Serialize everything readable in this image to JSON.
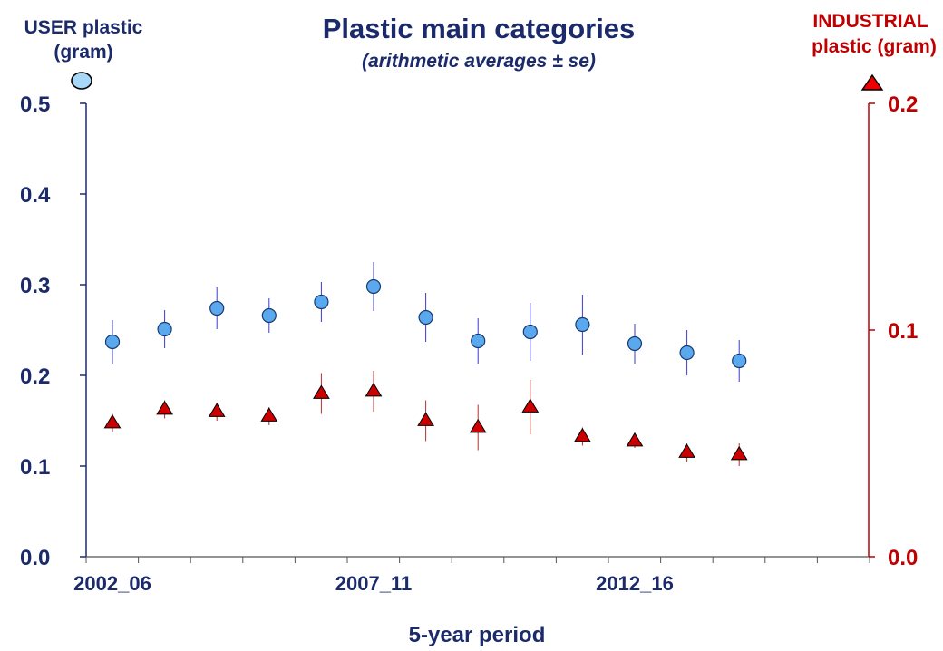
{
  "chart_data": {
    "type": "scatter",
    "title": "Plastic main categories",
    "subtitle": "(arithmetic averages ± se)",
    "xlabel": "5-year period",
    "y_left_label": [
      "USER plastic",
      "(gram)"
    ],
    "y_right_label": [
      "INDUSTRIAL",
      "plastic (gram)"
    ],
    "x_tick_labels": [
      "2002_06",
      "2007_11",
      "2012_16"
    ],
    "x_tick_positions": [
      1,
      6,
      11
    ],
    "x_range": [
      1,
      16
    ],
    "y_left": {
      "ticks": [
        "0.0",
        "0.1",
        "0.2",
        "0.3",
        "0.4",
        "0.5"
      ],
      "ylim": [
        0,
        0.5
      ]
    },
    "y_right": {
      "ticks": [
        "0.0",
        "0.1",
        "0.2"
      ],
      "ylim": [
        0,
        0.2
      ]
    },
    "grid": false,
    "series": [
      {
        "name": "USER plastic",
        "axis": "left",
        "marker": "circle",
        "color": "#5aa9ef",
        "error_color": "#3a3ad0",
        "x": [
          1,
          2,
          3,
          4,
          5,
          6,
          7,
          8,
          9,
          10,
          11,
          12,
          13
        ],
        "y": [
          0.237,
          0.251,
          0.274,
          0.266,
          0.281,
          0.298,
          0.264,
          0.238,
          0.248,
          0.256,
          0.235,
          0.225,
          0.216
        ],
        "se": [
          0.024,
          0.021,
          0.023,
          0.019,
          0.022,
          0.027,
          0.027,
          0.025,
          0.032,
          0.033,
          0.022,
          0.025,
          0.023
        ]
      },
      {
        "name": "INDUSTRIAL plastic",
        "axis": "right",
        "marker": "triangle",
        "color": "#cc0000",
        "error_color": "#b03030",
        "x": [
          1,
          2,
          3,
          4,
          5,
          6,
          7,
          8,
          9,
          10,
          11,
          12,
          13
        ],
        "y": [
          0.059,
          0.065,
          0.064,
          0.062,
          0.072,
          0.073,
          0.06,
          0.057,
          0.066,
          0.053,
          0.051,
          0.046,
          0.045
        ],
        "se": [
          0.004,
          0.004,
          0.004,
          0.004,
          0.009,
          0.009,
          0.009,
          0.01,
          0.012,
          0.004,
          0.003,
          0.004,
          0.005
        ]
      }
    ]
  }
}
